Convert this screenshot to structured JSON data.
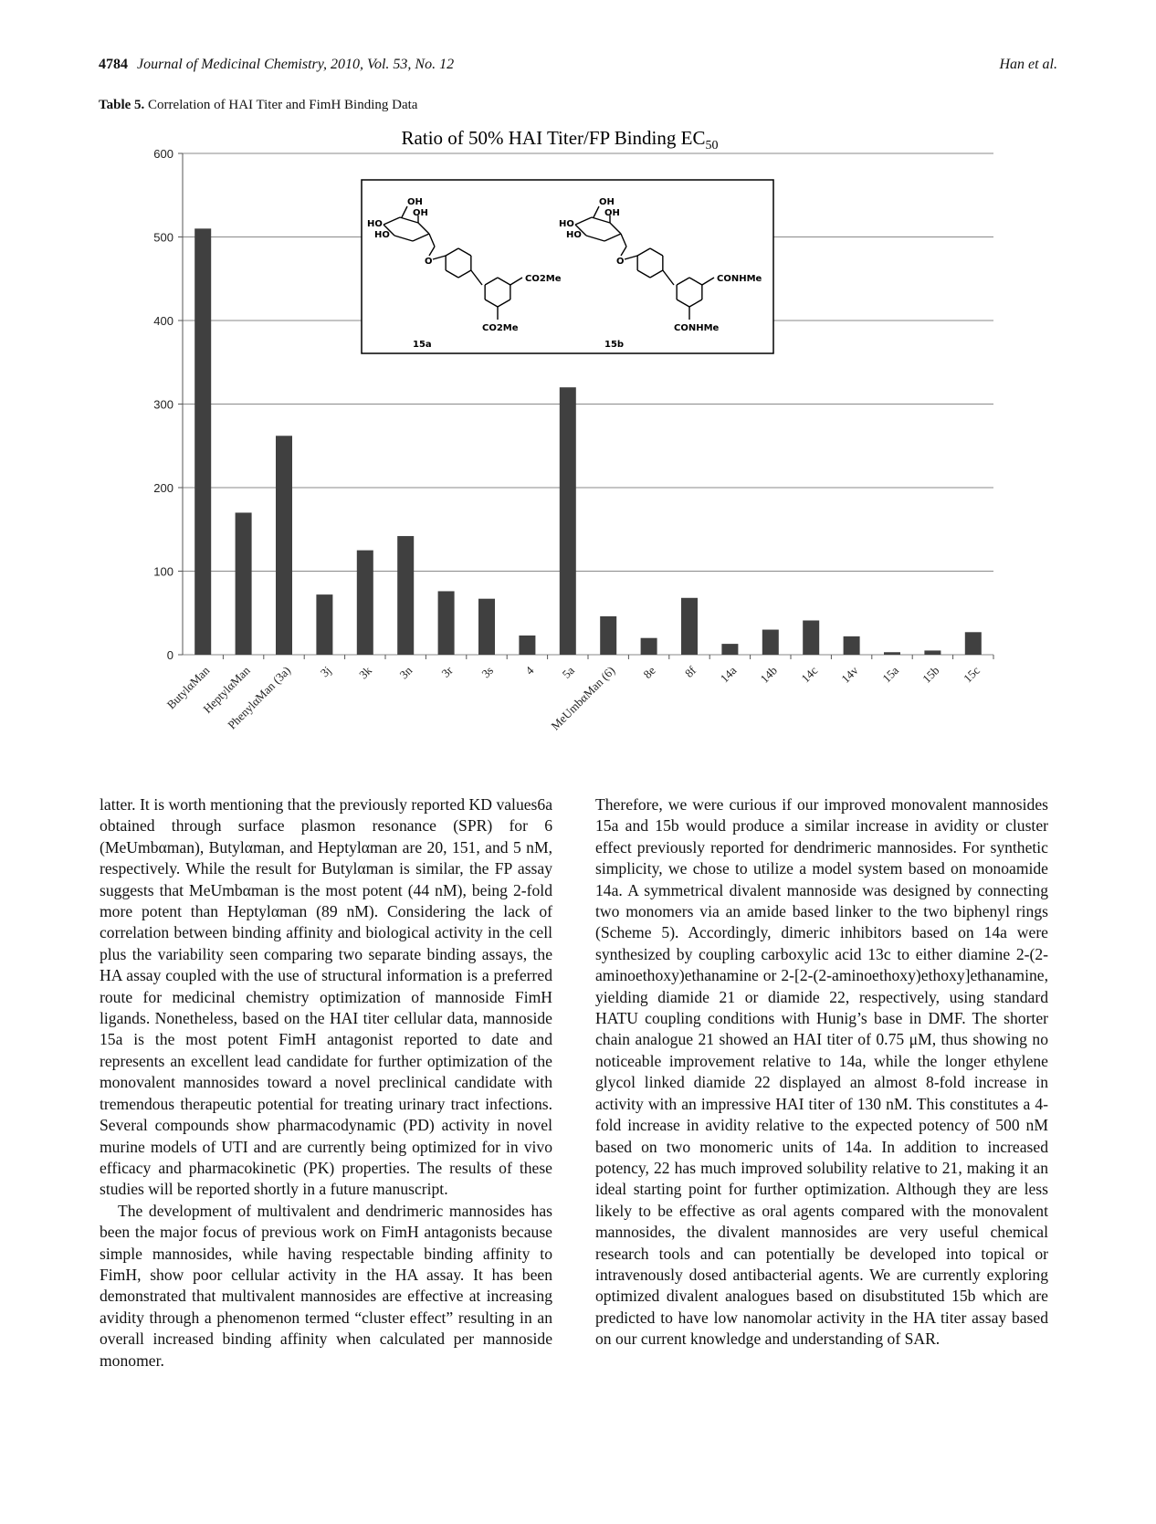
{
  "header": {
    "page_number": "4784",
    "journal": "Journal of Medicinal Chemistry, 2010, Vol. 53, No. 12",
    "authors": "Han et al."
  },
  "table_caption": {
    "label": "Table 5.",
    "text": "Correlation of HAI Titer and FimH Binding Data"
  },
  "chart_data": {
    "type": "bar",
    "title": "Ratio of 50% HAI Titer/FP Binding EC",
    "title_subscript": "50",
    "categories": [
      "ButylαMan",
      "HeptylαMan",
      "PhenylαMan (3a)",
      "3j",
      "3k",
      "3n",
      "3r",
      "3s",
      "4",
      "5a",
      "MeUmbαMan (6)",
      "8e",
      "8f",
      "14a",
      "14b",
      "14c",
      "14v",
      "15a",
      "15b",
      "15c"
    ],
    "values": [
      510,
      170,
      262,
      72,
      125,
      142,
      76,
      67,
      23,
      320,
      46,
      20,
      68,
      13,
      30,
      41,
      22,
      3,
      5,
      27
    ],
    "ylim": [
      0,
      600
    ],
    "yticks": [
      0,
      100,
      200,
      300,
      400,
      500,
      600
    ],
    "xlabel": "",
    "ylabel": "",
    "grid": true,
    "bar_color": "#404040",
    "inset": {
      "structures": [
        {
          "label": "15a",
          "substituent_1": "CO2Me",
          "substituent_2": "CO2Me"
        },
        {
          "label": "15b",
          "substituent_1": "CONHMe",
          "substituent_2": "CONHMe"
        }
      ],
      "atoms": {
        "oh": "OH",
        "ho": "HO",
        "o": "O"
      }
    }
  },
  "body": {
    "left_column": [
      "latter. It is worth mentioning that the previously reported KD values6a obtained through surface plasmon resonance (SPR) for 6 (MeUmbαman), Butylαman, and Heptylαman are 20, 151, and 5 nM, respectively. While the result for Butylαman is similar, the FP assay suggests that MeUmbαman is the most potent (44 nM), being 2-fold more potent than Heptylαman (89 nM). Considering the lack of correlation between binding affinity and biological activity in the cell plus the variability seen comparing two separate binding assays, the HA assay coupled with the use of structural information is a preferred route for medicinal chemistry optimization of mannoside FimH ligands. Nonetheless, based on the HAI titer cellular data, mannoside 15a is the most potent FimH antagonist reported to date and represents an excellent lead candidate for further optimization of the monovalent mannosides toward a novel preclinical candidate with tremendous therapeutic potential for treating urinary tract infections. Several compounds show pharmacodynamic (PD) activity in novel murine models of UTI and are currently being optimized for in vivo efficacy and pharmacokinetic (PK) properties. The results of these studies will be reported shortly in a future manuscript.",
      "The development of multivalent and dendrimeric mannosides has been the major focus of previous work on FimH antagonists because simple mannosides, while having respectable binding affinity to FimH, show poor cellular activity in the HA assay. It has been demonstrated that multivalent mannosides are effective at increasing avidity through a phenomenon termed “cluster effect” resulting in an overall increased binding affinity when calculated per mannoside monomer."
    ],
    "right_column": [
      "Therefore, we were curious if our improved monovalent mannosides 15a and 15b would produce a similar increase in avidity or cluster effect previously reported for dendrimeric mannosides. For synthetic simplicity, we chose to utilize a model system based on monoamide 14a. A symmetrical divalent mannoside was designed by connecting two monomers via an amide based linker to the two biphenyl rings (Scheme 5). Accordingly, dimeric inhibitors based on 14a were synthesized by coupling carboxylic acid 13c to either diamine 2-(2-aminoethoxy)ethanamine or 2-[2-(2-aminoethoxy)ethoxy]ethanamine, yielding diamide 21 or diamide 22, respectively, using standard HATU coupling conditions with Hunig’s base in DMF. The shorter chain analogue 21 showed an HAI titer of 0.75 μM, thus showing no noticeable improvement relative to 14a, while the longer ethylene glycol linked diamide 22 displayed an almost 8-fold increase in activity with an impressive HAI titer of 130 nM. This constitutes a 4-fold increase in avidity relative to the expected potency of 500 nM based on two monomeric units of 14a. In addition to increased potency, 22 has much improved solubility relative to 21, making it an ideal starting point for further optimization. Although they are less likely to be effective as oral agents compared with the monovalent mannosides, the divalent mannosides are very useful chemical research tools and can potentially be developed into topical or intravenously dosed antibacterial agents. We are currently exploring optimized divalent analogues based on disubstituted 15b which are predicted to have low nanomolar activity in the HA titer assay based on our current knowledge and understanding of SAR."
    ]
  }
}
